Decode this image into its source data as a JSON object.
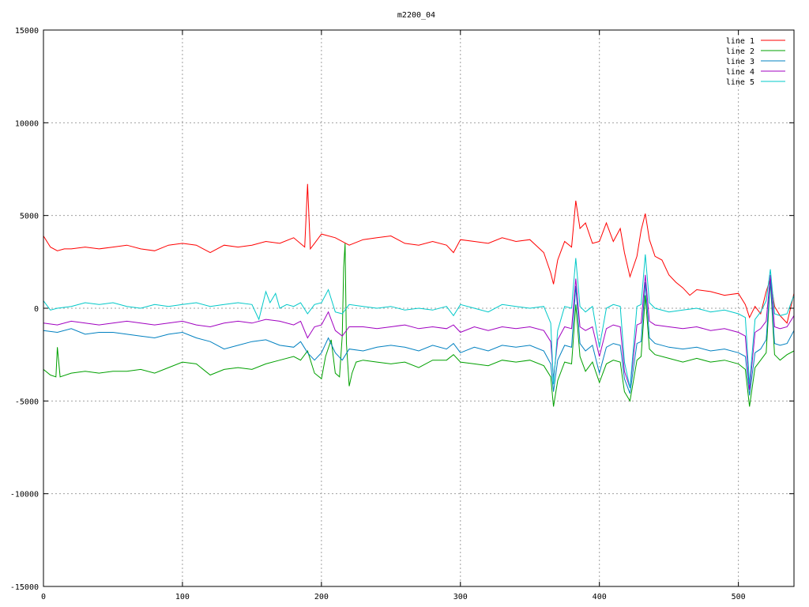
{
  "chart_data": {
    "type": "line",
    "title": "m2200_04",
    "xlabel": "",
    "ylabel": "",
    "xlim": [
      0,
      540
    ],
    "ylim": [
      -15000,
      15000
    ],
    "xticks": [
      0,
      100,
      200,
      300,
      400,
      500
    ],
    "yticks": [
      -15000,
      -10000,
      -5000,
      0,
      5000,
      10000,
      15000
    ],
    "grid": true,
    "legend_position": "top-right",
    "series": [
      {
        "name": "line 1",
        "color": "#ff0000",
        "x": [
          0,
          5,
          10,
          15,
          20,
          30,
          40,
          50,
          60,
          70,
          80,
          90,
          100,
          110,
          120,
          130,
          140,
          150,
          160,
          170,
          180,
          188,
          190,
          192,
          195,
          200,
          210,
          220,
          230,
          240,
          250,
          260,
          270,
          280,
          290,
          295,
          300,
          310,
          320,
          330,
          340,
          350,
          360,
          365,
          367,
          370,
          372,
          375,
          380,
          383,
          386,
          390,
          395,
          400,
          405,
          410,
          415,
          418,
          422,
          427,
          430,
          433,
          436,
          440,
          445,
          450,
          455,
          460,
          465,
          470,
          480,
          490,
          500,
          505,
          508,
          512,
          516,
          520,
          523,
          526,
          530,
          535,
          540
        ],
        "y": [
          3900,
          3300,
          3100,
          3200,
          3200,
          3300,
          3200,
          3300,
          3400,
          3200,
          3100,
          3400,
          3500,
          3400,
          3000,
          3400,
          3300,
          3400,
          3600,
          3500,
          3800,
          3300,
          6700,
          3200,
          3500,
          4000,
          3800,
          3400,
          3700,
          3800,
          3900,
          3500,
          3400,
          3600,
          3400,
          3000,
          3700,
          3600,
          3500,
          3800,
          3600,
          3700,
          3000,
          1900,
          1300,
          2600,
          3000,
          3600,
          3300,
          5800,
          4300,
          4600,
          3500,
          3600,
          4600,
          3600,
          4300,
          3000,
          1700,
          2800,
          4200,
          5100,
          3700,
          2800,
          2600,
          1800,
          1400,
          1100,
          700,
          1000,
          900,
          700,
          800,
          200,
          -500,
          100,
          -300,
          900,
          1600,
          100,
          -400,
          -800,
          800
        ]
      },
      {
        "name": "line 2",
        "color": "#00a000",
        "x": [
          0,
          5,
          9,
          10,
          12,
          20,
          30,
          40,
          50,
          60,
          70,
          80,
          90,
          100,
          110,
          120,
          130,
          140,
          150,
          160,
          170,
          180,
          185,
          190,
          195,
          200,
          203,
          207,
          210,
          213,
          215,
          216,
          217,
          218,
          220,
          222,
          225,
          230,
          240,
          250,
          260,
          270,
          280,
          290,
          295,
          300,
          310,
          320,
          330,
          340,
          350,
          360,
          365,
          367,
          370,
          375,
          380,
          383,
          386,
          390,
          395,
          400,
          405,
          410,
          415,
          418,
          422,
          427,
          430,
          433,
          436,
          440,
          450,
          460,
          470,
          480,
          490,
          500,
          505,
          508,
          512,
          516,
          520,
          523,
          526,
          530,
          535,
          540
        ],
        "y": [
          -3300,
          -3600,
          -3700,
          -2100,
          -3700,
          -3500,
          -3400,
          -3500,
          -3400,
          -3400,
          -3300,
          -3500,
          -3200,
          -2900,
          -3000,
          -3600,
          -3300,
          -3200,
          -3300,
          -3000,
          -2800,
          -2600,
          -2800,
          -2300,
          -3500,
          -3800,
          -2600,
          -1700,
          -3500,
          -3700,
          -1500,
          2200,
          3500,
          -1900,
          -4200,
          -3500,
          -2900,
          -2800,
          -2900,
          -3000,
          -2900,
          -3200,
          -2800,
          -2800,
          -2500,
          -2900,
          -3000,
          -3100,
          -2800,
          -2900,
          -2800,
          -3100,
          -3700,
          -5300,
          -3900,
          -2900,
          -3000,
          200,
          -2600,
          -3400,
          -2900,
          -4000,
          -3000,
          -2800,
          -2900,
          -4500,
          -5000,
          -2800,
          -2600,
          700,
          -2200,
          -2500,
          -2700,
          -2900,
          -2700,
          -2900,
          -2800,
          -3000,
          -3300,
          -5300,
          -3200,
          -2800,
          -2400,
          1500,
          -2500,
          -2800,
          -2500,
          -2300
        ]
      },
      {
        "name": "line 3",
        "color": "#0080c0",
        "x": [
          0,
          10,
          20,
          30,
          40,
          50,
          60,
          70,
          80,
          90,
          100,
          110,
          120,
          130,
          140,
          150,
          160,
          170,
          180,
          185,
          190,
          195,
          200,
          205,
          210,
          215,
          220,
          230,
          240,
          250,
          260,
          270,
          280,
          290,
          295,
          300,
          310,
          320,
          330,
          340,
          350,
          360,
          365,
          367,
          370,
          375,
          380,
          383,
          386,
          390,
          395,
          400,
          405,
          410,
          415,
          418,
          422,
          427,
          430,
          433,
          436,
          440,
          450,
          460,
          470,
          480,
          490,
          500,
          505,
          508,
          512,
          516,
          520,
          523,
          526,
          530,
          535,
          540
        ],
        "y": [
          -1200,
          -1300,
          -1100,
          -1400,
          -1300,
          -1300,
          -1400,
          -1500,
          -1600,
          -1400,
          -1300,
          -1600,
          -1800,
          -2200,
          -2000,
          -1800,
          -1700,
          -2000,
          -2100,
          -1800,
          -2400,
          -2800,
          -2400,
          -1600,
          -2400,
          -2800,
          -2200,
          -2300,
          -2100,
          -2000,
          -2100,
          -2300,
          -2000,
          -2200,
          -1900,
          -2400,
          -2100,
          -2300,
          -2000,
          -2100,
          -2000,
          -2300,
          -3000,
          -4500,
          -2800,
          -2000,
          -2100,
          1200,
          -1900,
          -2300,
          -2000,
          -3500,
          -2100,
          -1900,
          -2000,
          -3800,
          -4600,
          -1900,
          -1800,
          1400,
          -1600,
          -1900,
          -2100,
          -2200,
          -2100,
          -2300,
          -2200,
          -2400,
          -2600,
          -4700,
          -2400,
          -2200,
          -1700,
          1500,
          -1900,
          -2000,
          -1900,
          -1200
        ]
      },
      {
        "name": "line 4",
        "color": "#a000c0",
        "x": [
          0,
          10,
          20,
          30,
          40,
          50,
          60,
          70,
          80,
          90,
          100,
          110,
          120,
          130,
          140,
          150,
          160,
          170,
          180,
          185,
          190,
          195,
          200,
          205,
          210,
          215,
          220,
          230,
          240,
          250,
          260,
          270,
          280,
          290,
          295,
          300,
          310,
          320,
          330,
          340,
          350,
          360,
          365,
          367,
          370,
          375,
          380,
          383,
          386,
          390,
          395,
          400,
          405,
          410,
          415,
          418,
          422,
          427,
          430,
          433,
          436,
          440,
          450,
          460,
          470,
          480,
          490,
          500,
          505,
          508,
          512,
          516,
          520,
          523,
          526,
          530,
          535,
          540
        ],
        "y": [
          -800,
          -900,
          -700,
          -800,
          -900,
          -800,
          -700,
          -800,
          -900,
          -800,
          -700,
          -900,
          -1000,
          -800,
          -700,
          -800,
          -600,
          -700,
          -900,
          -700,
          -1600,
          -1000,
          -900,
          -200,
          -1200,
          -1500,
          -1000,
          -1000,
          -1100,
          -1000,
          -900,
          -1100,
          -1000,
          -1100,
          -900,
          -1300,
          -1000,
          -1200,
          -1000,
          -1100,
          -1000,
          -1200,
          -1800,
          -3800,
          -1700,
          -1000,
          -1100,
          1600,
          -1000,
          -1200,
          -1000,
          -2600,
          -1100,
          -900,
          -1000,
          -3400,
          -4300,
          -900,
          -800,
          1800,
          -700,
          -900,
          -1000,
          -1100,
          -1000,
          -1200,
          -1100,
          -1300,
          -1500,
          -4400,
          -1300,
          -1100,
          -700,
          1800,
          -1000,
          -1100,
          -1000,
          -400
        ]
      },
      {
        "name": "line 5",
        "color": "#00c8c8",
        "x": [
          0,
          5,
          10,
          20,
          30,
          40,
          50,
          60,
          70,
          80,
          90,
          100,
          110,
          120,
          130,
          140,
          150,
          155,
          160,
          163,
          167,
          170,
          175,
          180,
          185,
          190,
          195,
          200,
          205,
          210,
          215,
          220,
          230,
          240,
          250,
          260,
          270,
          280,
          290,
          295,
          300,
          310,
          320,
          330,
          340,
          350,
          360,
          365,
          367,
          370,
          375,
          380,
          383,
          386,
          390,
          395,
          400,
          405,
          410,
          415,
          418,
          422,
          427,
          430,
          433,
          436,
          440,
          450,
          460,
          470,
          480,
          490,
          500,
          505,
          508,
          512,
          516,
          520,
          523,
          526,
          530,
          535,
          540
        ],
        "y": [
          400,
          -100,
          0,
          100,
          300,
          200,
          300,
          100,
          0,
          200,
          100,
          200,
          300,
          100,
          200,
          300,
          200,
          -600,
          900,
          300,
          800,
          0,
          200,
          100,
          300,
          -300,
          200,
          300,
          1000,
          -200,
          -300,
          200,
          100,
          0,
          100,
          -100,
          0,
          -100,
          100,
          -400,
          200,
          0,
          -200,
          200,
          100,
          0,
          100,
          -800,
          -4100,
          -1200,
          100,
          0,
          2700,
          100,
          -200,
          100,
          -2100,
          0,
          200,
          100,
          -2900,
          -4300,
          100,
          200,
          2900,
          300,
          0,
          -200,
          -100,
          0,
          -200,
          -100,
          -300,
          -500,
          -4100,
          -600,
          -200,
          400,
          2100,
          -300,
          -400,
          -300,
          700
        ]
      }
    ]
  }
}
